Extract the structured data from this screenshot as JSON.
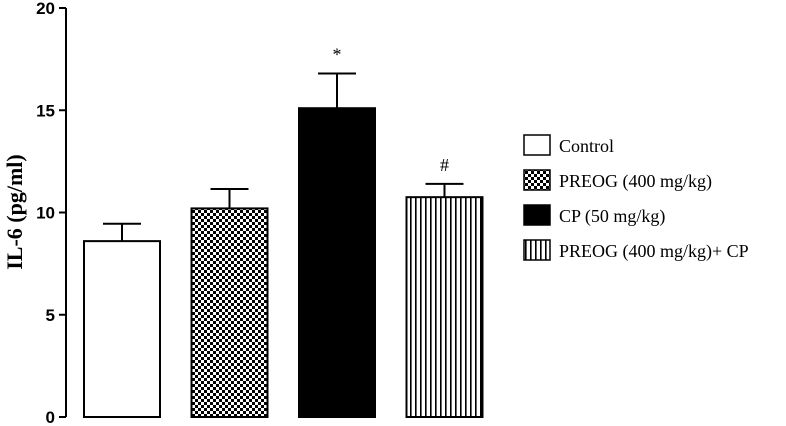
{
  "chart_data": {
    "type": "bar",
    "title": "",
    "xlabel": "",
    "ylabel": "IL-6 (pg/ml)",
    "ylim": [
      0,
      20
    ],
    "yticks": [
      "0",
      "5",
      "10",
      "15",
      "20"
    ],
    "grid": false,
    "legend_position": "right",
    "series": [
      {
        "name": "Control",
        "value": 8.6,
        "error": 0.85,
        "fill": "white",
        "annotation": ""
      },
      {
        "name": "PREOG (400 mg/kg)",
        "value": 10.2,
        "error": 0.95,
        "fill": "checker",
        "annotation": ""
      },
      {
        "name": "CP (50 mg/kg)",
        "value": 15.1,
        "error": 1.7,
        "fill": "black",
        "annotation": "*"
      },
      {
        "name": "PREOG (400 mg/kg)+ CP",
        "value": 10.75,
        "error": 0.65,
        "fill": "vertical-stripes",
        "annotation": "#"
      }
    ]
  }
}
